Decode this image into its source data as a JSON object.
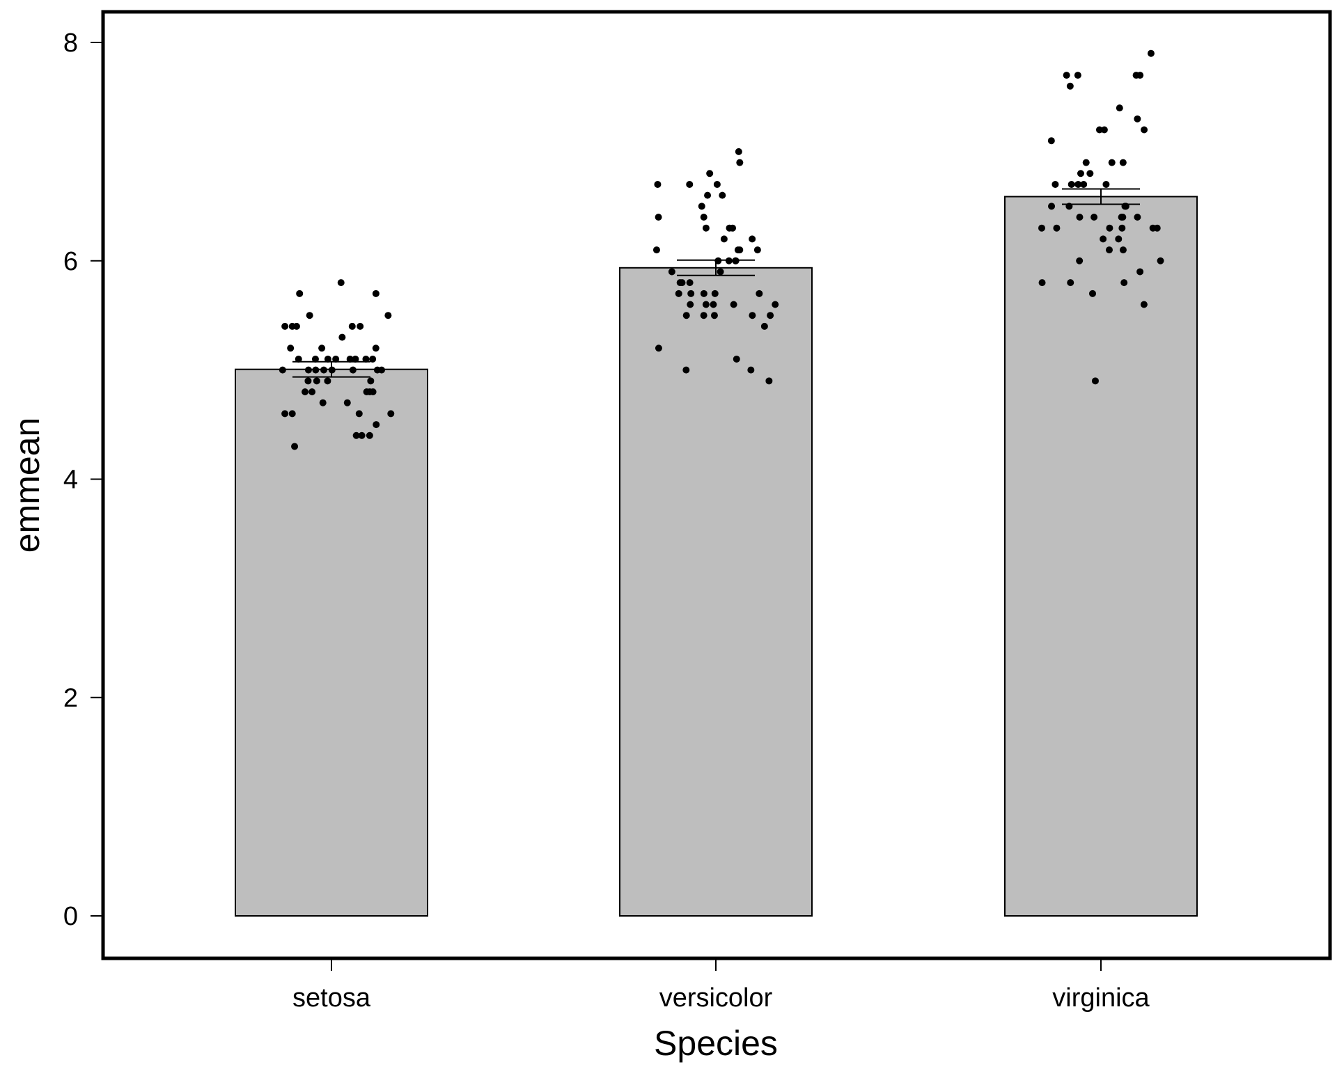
{
  "chart_data": {
    "type": "bar",
    "xlabel": "Species",
    "ylabel": "emmean",
    "ylim": [
      -0.4,
      8.3
    ],
    "yticks": [
      0,
      2,
      4,
      6,
      8
    ],
    "grid": false,
    "categories": [
      "setosa",
      "versicolor",
      "virginica"
    ],
    "values": [
      5.006,
      5.936,
      6.588
    ],
    "error_bars": [
      {
        "lower": 4.936,
        "upper": 5.076
      },
      {
        "lower": 5.866,
        "upper": 6.006
      },
      {
        "lower": 6.518,
        "upper": 6.658
      }
    ],
    "points": [
      [
        5.1,
        4.9,
        4.7,
        4.6,
        5.0,
        5.4,
        4.6,
        5.0,
        4.4,
        4.9,
        5.4,
        4.8,
        4.8,
        4.3,
        5.8,
        5.7,
        5.4,
        5.1,
        5.7,
        5.1,
        5.4,
        5.1,
        4.6,
        5.1,
        4.8,
        5.0,
        5.0,
        5.2,
        5.2,
        4.7,
        4.8,
        5.4,
        5.2,
        5.5,
        4.9,
        5.0,
        5.5,
        4.9,
        4.4,
        5.1,
        5.0,
        4.5,
        4.4,
        5.0,
        5.1,
        4.8,
        5.1,
        4.6,
        5.3,
        5.0
      ],
      [
        7.0,
        6.4,
        6.9,
        5.5,
        6.5,
        5.7,
        6.3,
        4.9,
        6.6,
        5.2,
        5.0,
        5.9,
        6.0,
        6.1,
        5.6,
        6.7,
        5.6,
        5.8,
        6.2,
        5.6,
        5.9,
        6.1,
        6.3,
        6.1,
        6.4,
        6.6,
        6.8,
        6.7,
        6.0,
        5.7,
        5.5,
        5.5,
        5.8,
        6.0,
        5.4,
        6.0,
        6.7,
        6.3,
        5.6,
        5.5,
        5.5,
        6.1,
        5.8,
        5.0,
        5.6,
        5.7,
        5.7,
        6.2,
        5.1,
        5.7
      ],
      [
        6.3,
        5.8,
        7.1,
        6.3,
        6.5,
        7.6,
        4.9,
        7.3,
        6.7,
        7.2,
        6.5,
        6.4,
        6.8,
        5.7,
        5.8,
        6.4,
        6.5,
        7.7,
        7.7,
        6.0,
        6.9,
        5.6,
        7.7,
        6.3,
        6.7,
        7.2,
        6.2,
        6.1,
        6.4,
        7.2,
        7.4,
        7.9,
        6.4,
        6.3,
        6.1,
        7.7,
        6.3,
        6.4,
        6.0,
        6.9,
        6.7,
        6.9,
        5.8,
        6.8,
        6.7,
        6.7,
        6.3,
        6.5,
        6.2,
        5.9
      ]
    ],
    "colors": {
      "bar_fill": "#bebebe",
      "bar_stroke": "#000000",
      "point": "#000000",
      "frame": "#000000"
    }
  }
}
